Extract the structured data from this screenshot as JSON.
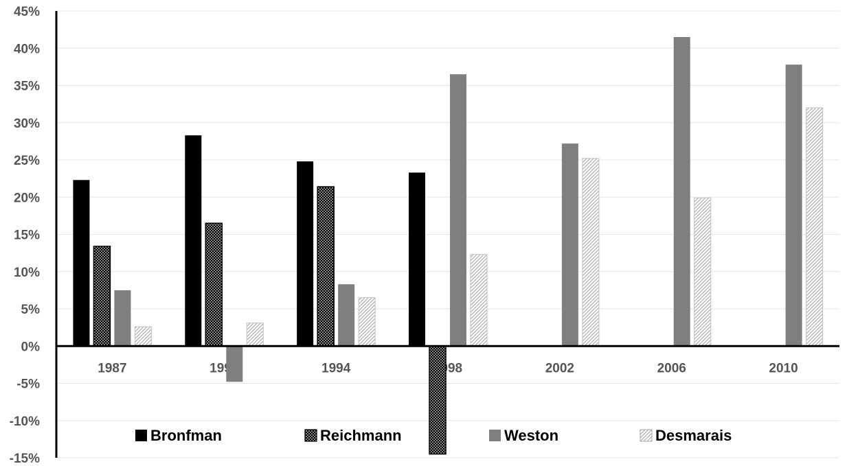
{
  "chart_data": {
    "type": "bar",
    "categories": [
      "1987",
      "1990",
      "1994",
      "1998",
      "2002",
      "2006",
      "2010"
    ],
    "series": [
      {
        "name": "Bronfman",
        "values": [
          22.3,
          28.3,
          24.8,
          23.3,
          null,
          null,
          null
        ],
        "fill": "#000000",
        "pattern": "solid"
      },
      {
        "name": "Reichmann",
        "values": [
          13.4,
          16.5,
          21.4,
          -14.5,
          null,
          null,
          null
        ],
        "fill": "#000000",
        "pattern": "crosshatch"
      },
      {
        "name": "Weston",
        "values": [
          7.5,
          -4.8,
          8.3,
          36.5,
          27.2,
          41.5,
          37.8
        ],
        "fill": "#7f7f7f",
        "pattern": "solid"
      },
      {
        "name": "Desmarais",
        "values": [
          2.6,
          3.1,
          6.5,
          12.3,
          25.2,
          19.9,
          32.0
        ],
        "fill": "#d9d9d9",
        "pattern": "diagonal"
      }
    ],
    "yticks": [
      "45%",
      "40%",
      "35%",
      "30%",
      "25%",
      "20%",
      "15%",
      "10%",
      "5%",
      "0%",
      "-5%",
      "-10%",
      "-15%"
    ],
    "ylim": [
      -15,
      45
    ],
    "y_unit": "%",
    "grid": true,
    "legend_position": "bottom-inside",
    "title": "",
    "xlabel": "",
    "ylabel": ""
  }
}
